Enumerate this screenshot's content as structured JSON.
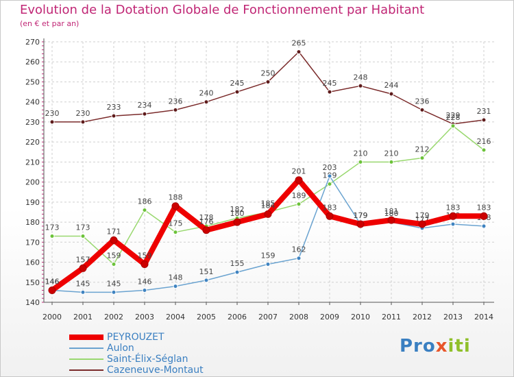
{
  "header": {
    "title": "Evolution de la Dotation Globale de Fonctionnement par Habitant",
    "subtitle": "(en € et par an)"
  },
  "logo": {
    "text": "Proxiti",
    "part_pro": "Pro",
    "part_x": "x",
    "part_iti": "iti"
  },
  "chart_data": {
    "type": "line",
    "title": "Evolution de la Dotation Globale de Fonctionnement par Habitant",
    "ylabel": "(en € et par an)",
    "xlabel": "",
    "x": [
      "2000",
      "2001",
      "2002",
      "2003",
      "2004",
      "2005",
      "2006",
      "2007",
      "2008",
      "2009",
      "2010",
      "2011",
      "2012",
      "2013",
      "2014"
    ],
    "ylim": [
      140,
      270
    ],
    "yticks": [
      140,
      150,
      160,
      170,
      180,
      190,
      200,
      210,
      220,
      230,
      240,
      250,
      260,
      270
    ],
    "grid": true,
    "legend_position": "bottom-left",
    "series": [
      {
        "name": "Cazeneuve-Montaut",
        "color": "#7a2a2a",
        "marker": "#5e1b1b",
        "values": [
          230,
          230,
          233,
          234,
          236,
          240,
          245,
          250,
          265,
          245,
          248,
          244,
          236,
          229,
          231
        ]
      },
      {
        "name": "Saint-Élix-Séglan",
        "color": "#99d86f",
        "marker": "#6cc23a",
        "values": [
          173,
          173,
          159,
          186,
          175,
          178,
          182,
          185,
          189,
          199,
          210,
          210,
          212,
          228,
          216
        ]
      },
      {
        "name": "Aulon",
        "color": "#6aa3d0",
        "marker": "#3f83c0",
        "values": [
          146,
          145,
          145,
          146,
          148,
          151,
          155,
          159,
          162,
          203,
          179,
          180,
          177,
          179,
          178
        ]
      },
      {
        "name": "PEYROUZET",
        "color": "#ee0000",
        "marker": "#cc0000",
        "values": [
          146,
          157,
          171,
          159,
          188,
          176,
          180,
          184,
          201,
          183,
          179,
          181,
          179,
          183,
          183
        ]
      }
    ],
    "legend": [
      {
        "name": "PEYROUZET",
        "color": "#ee0000",
        "text_color": "#3a7fc1",
        "thick": true
      },
      {
        "name": "Aulon",
        "color": "#6aa3d0",
        "text_color": "#3a7fc1",
        "thick": false
      },
      {
        "name": "Saint-Élix-Séglan",
        "color": "#99d86f",
        "text_color": "#3a7fc1",
        "thick": false
      },
      {
        "name": "Cazeneuve-Montaut",
        "color": "#7a2a2a",
        "text_color": "#3a7fc1",
        "thick": false
      }
    ]
  }
}
